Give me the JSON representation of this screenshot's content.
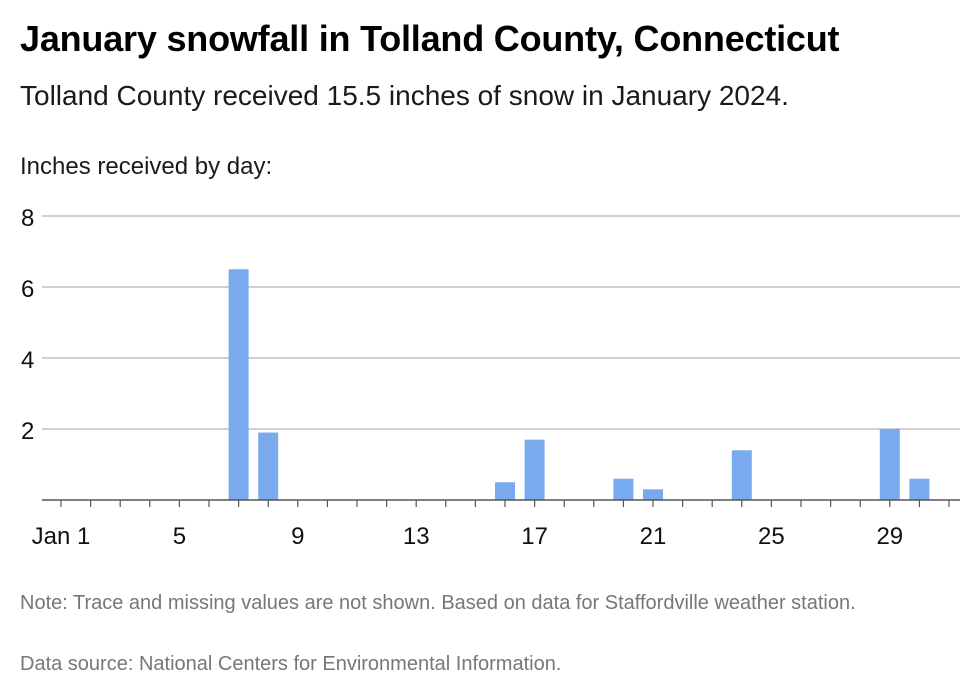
{
  "header": {
    "title": "January snowfall in Tolland County, Connecticut",
    "subtitle": "Tolland County received 15.5 inches of snow in January 2024."
  },
  "footer": {
    "note": "Note: Trace and missing values are not shown. Based on data for Staffordville weather station.",
    "source": "Data source: National Centers for Environmental Information."
  },
  "chart_data": {
    "type": "bar",
    "title": "January snowfall in Tolland County, Connecticut",
    "subtitle": "Tolland County received 15.5 inches of snow in January 2024.",
    "ylabel": "Inches received by day:",
    "xlabel": "",
    "ylim": [
      0,
      8
    ],
    "xlim": [
      1,
      31
    ],
    "y_ticks": [
      "2",
      "4",
      "6",
      "8"
    ],
    "x_ticks": [
      {
        "day": 1,
        "label": "Jan 1"
      },
      {
        "day": 5,
        "label": "5"
      },
      {
        "day": 9,
        "label": "9"
      },
      {
        "day": 13,
        "label": "13"
      },
      {
        "day": 17,
        "label": "17"
      },
      {
        "day": 21,
        "label": "21"
      },
      {
        "day": 25,
        "label": "25"
      },
      {
        "day": 29,
        "label": "29"
      }
    ],
    "bar_color": "#7aaaee",
    "grid": true,
    "points": [
      {
        "day": 7,
        "value": 6.5
      },
      {
        "day": 8,
        "value": 1.9
      },
      {
        "day": 16,
        "value": 0.5
      },
      {
        "day": 17,
        "value": 1.7
      },
      {
        "day": 20,
        "value": 0.6
      },
      {
        "day": 21,
        "value": 0.3
      },
      {
        "day": 24,
        "value": 1.4
      },
      {
        "day": 29,
        "value": 2.0
      },
      {
        "day": 30,
        "value": 0.6
      }
    ]
  }
}
